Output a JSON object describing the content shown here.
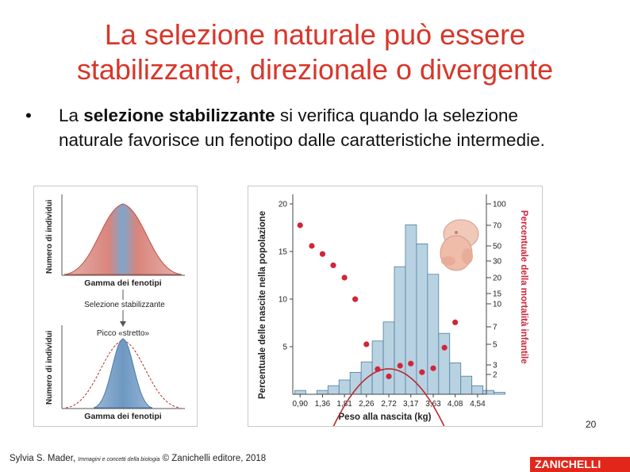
{
  "slide": {
    "title_line1": "La selezione naturale può essere",
    "title_line2": "stabilizzante, direzionale o divergente",
    "bullet_mark": "•",
    "bullet_pre": "La ",
    "bullet_bold": "selezione stabilizzante",
    "bullet_rest": " si verifica quando la selezione naturale favorisce un fenotipo dalle caratteristiche intermedie.",
    "page_number": "20",
    "footer_author": "Sylvia S. Mader, ",
    "footer_book": "Immagini e concetti della biologia",
    "footer_rest": " © Zanichelli editore, 2018",
    "logo_text": "ZANICHELLI"
  },
  "left_figure": {
    "top_ylabel": "Numero di individui",
    "top_xlabel": "Gamma dei fenotipi",
    "arrow_label": "Selezione stabilizzante",
    "peak_label": "Picco «stretto»",
    "bottom_ylabel": "Numero di individui",
    "bottom_xlabel": "Gamma dei fenotipi",
    "colors": {
      "curve_fill": "#e0a9a4",
      "center_fill": "#7ea6cc",
      "dashed": "#b6302a"
    }
  },
  "chart_data": {
    "type": "bar",
    "xlabel": "Peso alla nascita (kg)",
    "ylabel_left": "Percentuale delle nascite nella popolazione",
    "ylabel_right": "Percentuale della mortalità infantile",
    "x_tick_labels": [
      "0,90",
      "1,36",
      "1,81",
      "2,26",
      "2,72",
      "3,17",
      "3,63",
      "4,08",
      "4,54"
    ],
    "left_ticks": [
      "5",
      "10",
      "15",
      "20"
    ],
    "right_ticks": [
      "2",
      "3",
      "5",
      "7",
      "10",
      "15",
      "20",
      "30",
      "50",
      "70",
      "100"
    ],
    "ylim_left": [
      0,
      21
    ],
    "bin_start": 0.79,
    "bin_width": 0.227,
    "bar_values": [
      0.4,
      0,
      0.4,
      0.9,
      1.5,
      2.3,
      3.4,
      5.6,
      7.6,
      13.4,
      17.8,
      15.8,
      12.6,
      6.4,
      3.3,
      1.9,
      0.9,
      0.4,
      0.2
    ],
    "mortality_points": [
      {
        "x": 0.9,
        "y": 70
      },
      {
        "x": 1.14,
        "y": 50
      },
      {
        "x": 1.36,
        "y": 38
      },
      {
        "x": 1.58,
        "y": 27
      },
      {
        "x": 1.81,
        "y": 20
      },
      {
        "x": 2.03,
        "y": 12
      },
      {
        "x": 2.26,
        "y": 5
      },
      {
        "x": 2.49,
        "y": 2.5
      },
      {
        "x": 2.72,
        "y": 1.8
      },
      {
        "x": 2.95,
        "y": 2.9
      },
      {
        "x": 3.17,
        "y": 3.1
      },
      {
        "x": 3.4,
        "y": 2.2
      },
      {
        "x": 3.63,
        "y": 2.6
      },
      {
        "x": 3.86,
        "y": 4.6
      },
      {
        "x": 4.08,
        "y": 7.5
      }
    ],
    "colors": {
      "bars": "#b9d2e2",
      "bar_edge": "#4f7f9f",
      "curve": "#b72a2f",
      "points": "#d0263a"
    },
    "grid": false
  }
}
